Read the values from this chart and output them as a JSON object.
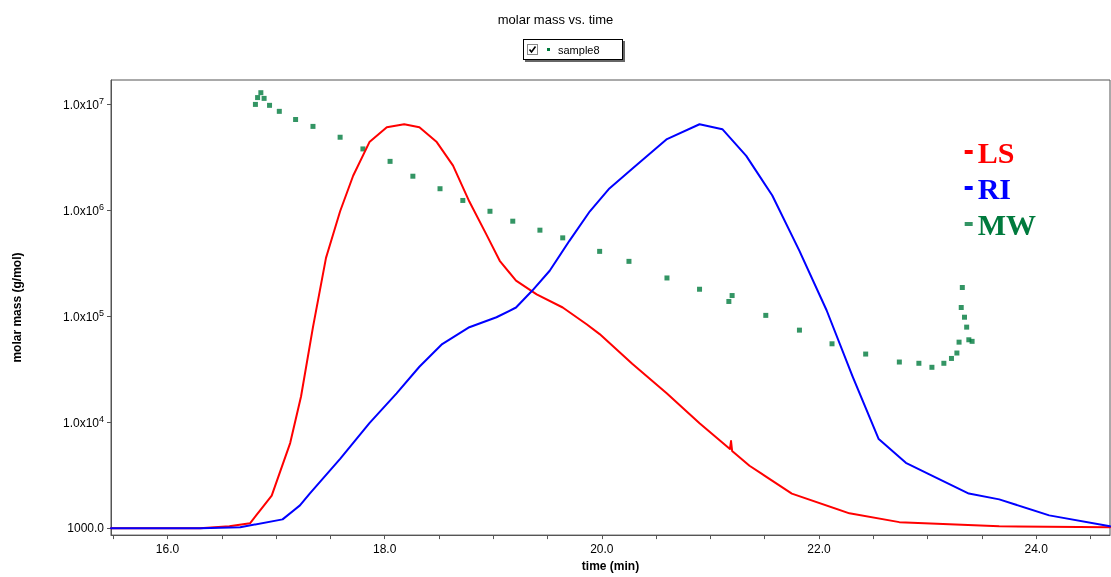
{
  "chart_data": {
    "type": "line",
    "title": "molar mass vs. time",
    "xlabel": "time (min)",
    "ylabel": "molar mass (g/mol)",
    "legend_title": "sample8",
    "log": true,
    "grid": false,
    "legend": "top right",
    "xlim": [
      15.48,
      24.68
    ],
    "xticks": [
      {
        "value": 15.5,
        "label": null
      },
      {
        "value": 16,
        "label": "16.0"
      },
      {
        "value": 16.5,
        "label": null
      },
      {
        "value": 17,
        "label": null
      },
      {
        "value": 17.5,
        "label": null
      },
      {
        "value": 18,
        "label": "18.0"
      },
      {
        "value": 18.5,
        "label": null
      },
      {
        "value": 19,
        "label": null
      },
      {
        "value": 19.5,
        "label": null
      },
      {
        "value": 20,
        "label": "20.0"
      },
      {
        "value": 20.5,
        "label": null
      },
      {
        "value": 21,
        "label": null
      },
      {
        "value": 21.5,
        "label": null
      },
      {
        "value": 22,
        "label": "22.0"
      },
      {
        "value": 22.5,
        "label": null
      },
      {
        "value": 23,
        "label": null
      },
      {
        "value": 23.5,
        "label": null
      },
      {
        "value": 24,
        "label": "24.0"
      },
      {
        "value": 24.5,
        "label": null
      }
    ],
    "ylim": [
      860,
      17000000
    ],
    "yticks": [
      {
        "value": 1000,
        "label": "1000.0"
      },
      {
        "value": 10000,
        "label": "1.0x10$^{4}$"
      },
      {
        "value": 100000,
        "label": "1.0x10$^{5}$"
      },
      {
        "value": 1000000,
        "label": "1.0x10$^{6}$"
      },
      {
        "value": 10000000,
        "label": "1.0x10$^{7}$"
      }
    ],
    "series": [
      {
        "name": "LS",
        "color": "#ff0000",
        "x": [
          15.48,
          16.3,
          16.57,
          16.76,
          16.96,
          17.13,
          17.23,
          17.34,
          17.46,
          17.59,
          17.71,
          17.86,
          18.02,
          18.18,
          18.32,
          18.48,
          18.63,
          18.78,
          18.94,
          19.06,
          19.21,
          19.4,
          19.64,
          19.86,
          19.98,
          20.28,
          20.6,
          20.9,
          21.18,
          21.19,
          21.2,
          21.36,
          21.75,
          22.28,
          22.74,
          23.66,
          24.68
        ],
        "values": [
          1000,
          1000,
          1040,
          1110,
          2030,
          6360,
          17500,
          78900,
          356000,
          980000,
          2120000,
          4410000,
          6100000,
          6500000,
          6100000,
          4410000,
          2640000,
          1210000,
          584000,
          334000,
          217000,
          161000,
          121000,
          84200,
          67900,
          35600,
          18700,
          9790,
          5590,
          6640,
          5360,
          3880,
          2120,
          1380,
          1140,
          1040,
          1020
        ]
      },
      {
        "name": "RI",
        "color": "#0000ff",
        "x": [
          15.48,
          16.3,
          16.67,
          17.06,
          17.22,
          17.31,
          17.59,
          17.86,
          18.11,
          18.32,
          18.53,
          18.78,
          19.03,
          19.21,
          19.36,
          19.52,
          19.7,
          19.89,
          20.07,
          20.28,
          20.6,
          20.9,
          21.11,
          21.33,
          21.57,
          21.82,
          22.07,
          22.31,
          22.55,
          22.8,
          23.04,
          23.38,
          23.66,
          24.12,
          24.68
        ],
        "values": [
          1000,
          1000,
          1020,
          1210,
          1640,
          2120,
          4510,
          9790,
          18700,
          33400,
          54700,
          78900,
          97900,
          121000,
          175000,
          269000,
          513000,
          980000,
          1610000,
          2470000,
          4710000,
          6500000,
          5840000,
          3270000,
          1380000,
          414000,
          114000,
          26900,
          6930,
          4140,
          3130,
          2120,
          1870,
          1320,
          1040
        ]
      },
      {
        "name": "MW",
        "color": "#007a3d",
        "type": "scatter",
        "marker": "square",
        "x": [
          16.81,
          16.83,
          16.86,
          16.89,
          16.94,
          17.03,
          17.18,
          17.34,
          17.59,
          17.8,
          18.05,
          18.26,
          18.51,
          18.72,
          18.97,
          19.18,
          19.43,
          19.64,
          19.98,
          20.25,
          20.6,
          20.9,
          21.17,
          21.2,
          21.51,
          21.82,
          22.12,
          22.43,
          22.74,
          22.92,
          23.04,
          23.15,
          23.22,
          23.27,
          23.29,
          23.31,
          23.32,
          23.34,
          23.36,
          23.38,
          23.41
        ],
        "values": [
          10000000,
          11600000,
          12900000,
          11400000,
          9800000,
          8600000,
          7200000,
          6200000,
          4900000,
          3800000,
          2900000,
          2100000,
          1600000,
          1240000,
          980000,
          790000,
          650000,
          550000,
          410000,
          330000,
          230000,
          180000,
          138000,
          157000,
          102000,
          74000,
          55000,
          44000,
          37000,
          36000,
          33000,
          36000,
          40000,
          45000,
          57000,
          121000,
          187000,
          98000,
          79000,
          60000,
          58000
        ]
      }
    ]
  }
}
